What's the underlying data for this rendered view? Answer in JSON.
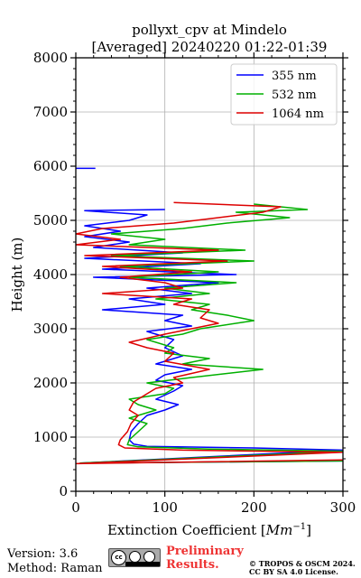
{
  "chart_data": {
    "type": "line",
    "title": "pollyxt_cpv at Mindelo",
    "subtitle": "[Averaged] 20240220 01:22-01:39",
    "xlabel": "Extinction Coefficient [Mm⁻¹]",
    "xlabel_main": "Extinction Coefficient [",
    "xlabel_unit": "Mm",
    "xlabel_exp": "−1",
    "xlabel_close": "]",
    "ylabel": "Height (m)",
    "xlim": [
      0,
      300
    ],
    "ylim": [
      0,
      8000
    ],
    "xticks": [
      "0",
      "100",
      "200",
      "300"
    ],
    "yticks": [
      "0",
      "1000",
      "2000",
      "3000",
      "4000",
      "5000",
      "6000",
      "7000",
      "8000"
    ],
    "grid": true,
    "legend_position": "top-right",
    "series": [
      {
        "name": "355 nm",
        "color": "#0000ff",
        "points": [
          [
            300,
            560
          ],
          [
            5,
            520
          ],
          [
            300,
            760
          ],
          [
            200,
            800
          ],
          [
            80,
            830
          ],
          [
            65,
            870
          ],
          [
            60,
            950
          ],
          [
            62,
            1100
          ],
          [
            70,
            1250
          ],
          [
            80,
            1400
          ],
          [
            100,
            1500
          ],
          [
            115,
            1600
          ],
          [
            90,
            1700
          ],
          [
            110,
            1850
          ],
          [
            120,
            1950
          ],
          [
            90,
            2050
          ],
          [
            100,
            2150
          ],
          [
            130,
            2250
          ],
          [
            90,
            2350
          ],
          [
            120,
            2500
          ],
          [
            100,
            2650
          ],
          [
            110,
            2800
          ],
          [
            80,
            2950
          ],
          [
            130,
            3050
          ],
          [
            100,
            3150
          ],
          [
            120,
            3250
          ],
          [
            30,
            3350
          ],
          [
            100,
            3450
          ],
          [
            60,
            3550
          ],
          [
            130,
            3650
          ],
          [
            80,
            3750
          ],
          [
            160,
            3850
          ],
          [
            20,
            3950
          ],
          [
            180,
            4000
          ],
          [
            30,
            4100
          ],
          [
            140,
            4200
          ],
          [
            10,
            4300
          ],
          [
            120,
            4400
          ],
          [
            20,
            4500
          ],
          [
            60,
            4600
          ],
          [
            10,
            4700
          ],
          [
            50,
            4800
          ],
          [
            10,
            4900
          ],
          [
            60,
            5000
          ],
          [
            80,
            5100
          ],
          [
            10,
            5180
          ],
          [
            100,
            5200
          ]
        ],
        "extra": [
          [
            0,
            5960
          ],
          [
            22,
            5960
          ]
        ]
      },
      {
        "name": "532 nm",
        "color": "#00b000",
        "points": [
          [
            300,
            560
          ],
          [
            5,
            520
          ],
          [
            300,
            740
          ],
          [
            150,
            780
          ],
          [
            70,
            820
          ],
          [
            58,
            860
          ],
          [
            60,
            950
          ],
          [
            70,
            1100
          ],
          [
            80,
            1250
          ],
          [
            60,
            1350
          ],
          [
            90,
            1500
          ],
          [
            70,
            1600
          ],
          [
            60,
            1700
          ],
          [
            100,
            1800
          ],
          [
            110,
            1900
          ],
          [
            80,
            2000
          ],
          [
            130,
            2100
          ],
          [
            210,
            2250
          ],
          [
            120,
            2350
          ],
          [
            150,
            2450
          ],
          [
            100,
            2550
          ],
          [
            110,
            2650
          ],
          [
            80,
            2800
          ],
          [
            120,
            2900
          ],
          [
            140,
            3000
          ],
          [
            200,
            3150
          ],
          [
            170,
            3250
          ],
          [
            130,
            3350
          ],
          [
            150,
            3450
          ],
          [
            90,
            3550
          ],
          [
            150,
            3650
          ],
          [
            100,
            3750
          ],
          [
            180,
            3850
          ],
          [
            60,
            3950
          ],
          [
            160,
            4050
          ],
          [
            50,
            4150
          ],
          [
            200,
            4250
          ],
          [
            40,
            4350
          ],
          [
            190,
            4450
          ],
          [
            60,
            4550
          ],
          [
            100,
            4650
          ],
          [
            40,
            4750
          ],
          [
            120,
            4850
          ],
          [
            170,
            4950
          ],
          [
            240,
            5050
          ],
          [
            180,
            5150
          ],
          [
            260,
            5200
          ],
          [
            200,
            5300
          ]
        ]
      },
      {
        "name": "1064 nm",
        "color": "#dd0000",
        "points": [
          [
            300,
            580
          ],
          [
            0,
            510
          ],
          [
            300,
            720
          ],
          [
            120,
            760
          ],
          [
            55,
            800
          ],
          [
            48,
            860
          ],
          [
            50,
            950
          ],
          [
            58,
            1100
          ],
          [
            62,
            1250
          ],
          [
            70,
            1400
          ],
          [
            60,
            1500
          ],
          [
            65,
            1650
          ],
          [
            80,
            1800
          ],
          [
            90,
            1900
          ],
          [
            120,
            2000
          ],
          [
            110,
            2100
          ],
          [
            150,
            2250
          ],
          [
            100,
            2400
          ],
          [
            110,
            2550
          ],
          [
            80,
            2650
          ],
          [
            60,
            2750
          ],
          [
            100,
            2900
          ],
          [
            130,
            3000
          ],
          [
            160,
            3100
          ],
          [
            140,
            3200
          ],
          [
            150,
            3350
          ],
          [
            110,
            3450
          ],
          [
            130,
            3550
          ],
          [
            30,
            3650
          ],
          [
            120,
            3750
          ],
          [
            100,
            3850
          ],
          [
            50,
            3950
          ],
          [
            130,
            4050
          ],
          [
            30,
            4150
          ],
          [
            170,
            4250
          ],
          [
            10,
            4350
          ],
          [
            160,
            4450
          ],
          [
            0,
            4550
          ],
          [
            50,
            4650
          ],
          [
            0,
            4750
          ],
          [
            30,
            4850
          ],
          [
            110,
            4950
          ],
          [
            160,
            5050
          ],
          [
            210,
            5150
          ],
          [
            230,
            5250
          ],
          [
            110,
            5330
          ]
        ]
      }
    ]
  },
  "footer": {
    "version": "Version: 3.6",
    "method": "Method: Raman",
    "preliminary": "Preliminary Results.",
    "copyright": "© TROPOS & OSCM 2024. CC BY SA 4.0 License.",
    "license_badge": "cc"
  }
}
